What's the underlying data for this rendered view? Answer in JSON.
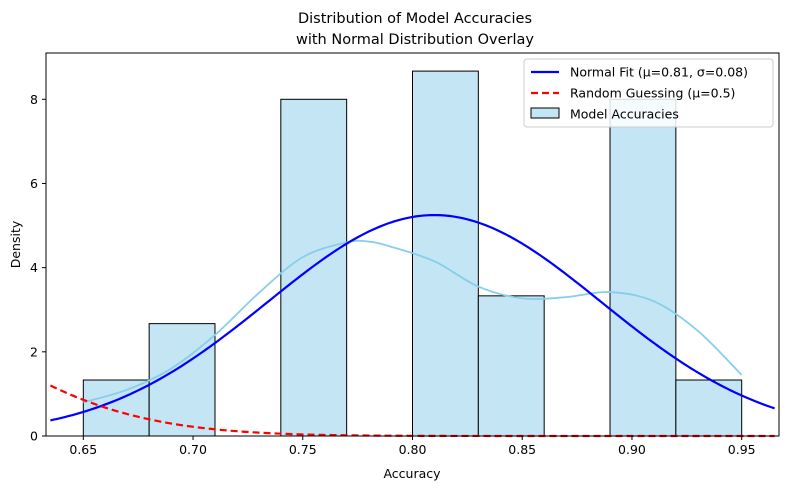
{
  "chart_data": {
    "type": "bar",
    "title": [
      "Distribution of Model Accuracies",
      "with Normal Distribution Overlay"
    ],
    "xlabel": "Accuracy",
    "ylabel": "Density",
    "xlim": [
      0.633,
      0.967
    ],
    "ylim": [
      0,
      9.1
    ],
    "xticks": [
      0.65,
      0.7,
      0.75,
      0.8,
      0.85,
      0.9,
      0.95
    ],
    "xtick_labels": [
      "0.65",
      "0.70",
      "0.75",
      "0.80",
      "0.85",
      "0.90",
      "0.95"
    ],
    "yticks": [
      0,
      2,
      4,
      6,
      8
    ],
    "ytick_labels": [
      "0",
      "2",
      "4",
      "6",
      "8"
    ],
    "grid": false,
    "legend_position": "top-right",
    "histogram": {
      "name": "Model Accuracies",
      "color": "#c3e5f4",
      "edge_color": "#000000",
      "bins": [
        {
          "x0": 0.65,
          "x1": 0.68,
          "density": 1.33
        },
        {
          "x0": 0.68,
          "x1": 0.71,
          "density": 2.67
        },
        {
          "x0": 0.74,
          "x1": 0.77,
          "density": 8.0
        },
        {
          "x0": 0.8,
          "x1": 0.83,
          "density": 8.67
        },
        {
          "x0": 0.83,
          "x1": 0.86,
          "density": 3.33
        },
        {
          "x0": 0.89,
          "x1": 0.92,
          "density": 8.0
        },
        {
          "x0": 0.92,
          "x1": 0.95,
          "density": 1.33
        }
      ]
    },
    "kde": {
      "color": "#87ceeb",
      "x": [
        0.65,
        0.67,
        0.69,
        0.71,
        0.73,
        0.75,
        0.77,
        0.78,
        0.79,
        0.81,
        0.83,
        0.85,
        0.87,
        0.89,
        0.91,
        0.93,
        0.95
      ],
      "y": [
        0.8,
        1.1,
        1.6,
        2.4,
        3.4,
        4.25,
        4.6,
        4.62,
        4.5,
        4.15,
        3.55,
        3.27,
        3.3,
        3.42,
        3.2,
        2.5,
        1.45
      ]
    },
    "series": [
      {
        "name": "Normal Fit (μ=0.81, σ=0.08)",
        "kind": "normal",
        "mu": 0.81,
        "sigma": 0.076,
        "color": "#0000ff",
        "style": "solid"
      },
      {
        "name": "Random Guessing (μ=0.5)",
        "kind": "normal",
        "mu": 0.5,
        "sigma": 0.08,
        "color": "#ff0000",
        "style": "dashed"
      }
    ],
    "curve_x_range": [
      0.635,
      0.965
    ]
  }
}
